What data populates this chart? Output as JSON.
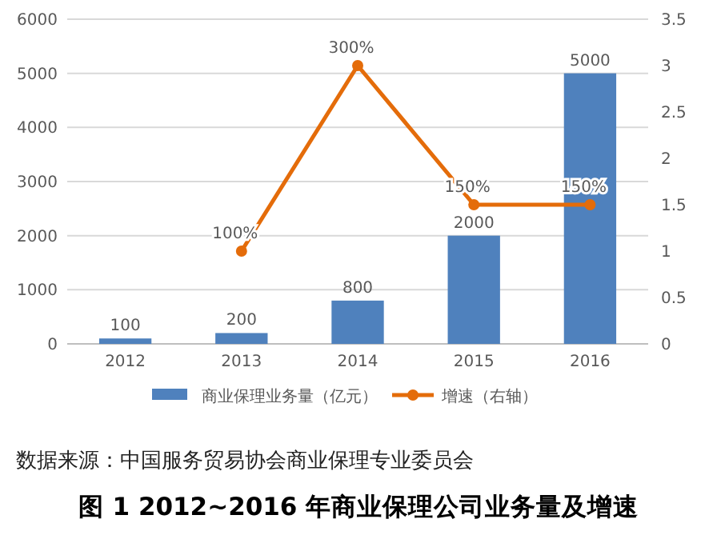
{
  "chart_data": {
    "type": "bar",
    "title": "图 1 2012~2016 年商业保理公司业务量及增速",
    "annotations": [
      "数据来源：中国服务贸易协会商业保理专业委员会"
    ],
    "categories": [
      "2012",
      "2013",
      "2014",
      "2015",
      "2016"
    ],
    "series": [
      {
        "name": "商业保理业务量（亿元）",
        "color": "#4f81bd",
        "values": [
          100,
          200,
          800,
          2000,
          5000
        ],
        "value_labels": [
          "100",
          "200",
          "800",
          "2000",
          "5000"
        ]
      },
      {
        "name": "增速（右轴）",
        "type": "line",
        "axis": "y2",
        "color": "#e46c0a",
        "marker": "circle",
        "values": [
          null,
          1,
          3,
          1.5,
          1.5
        ],
        "value_labels": [
          null,
          "100%",
          "300%",
          "150%",
          "150%"
        ]
      }
    ],
    "ylim": [
      0,
      6000
    ],
    "yticks": [
      0,
      1000,
      2000,
      3000,
      4000,
      5000,
      6000
    ],
    "y2lim": [
      0,
      3.5
    ],
    "y2ticks": [
      0,
      0.5,
      1,
      1.5,
      2,
      2.5,
      3,
      3.5
    ],
    "grid": "y",
    "legend": "bottom"
  }
}
